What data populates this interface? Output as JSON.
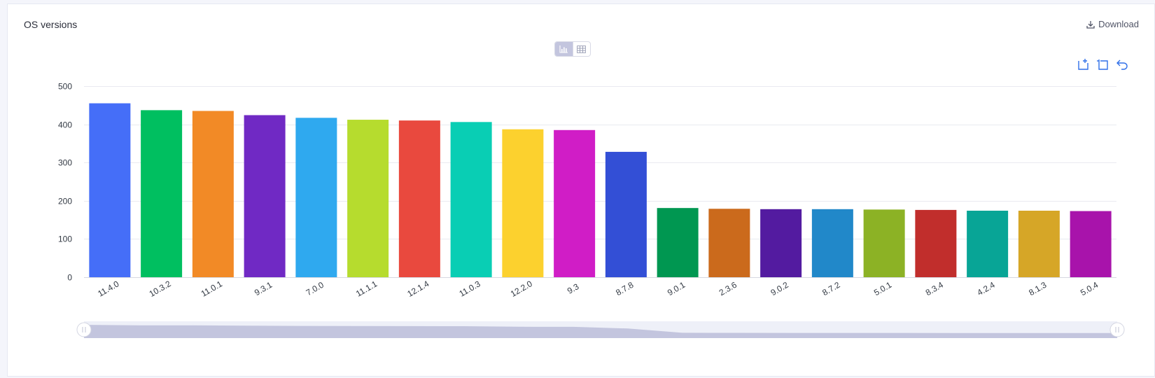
{
  "card": {
    "title": "OS versions",
    "download_label": "Download"
  },
  "toolbar": {
    "view_modes": [
      "chart",
      "table"
    ],
    "active_view": "chart",
    "tools": [
      "zoom-area-icon",
      "zoom-reset-icon",
      "restore-icon"
    ]
  },
  "colors": {
    "tool_blue": "#2f6fe8",
    "slider_fill": "#c3c5de",
    "slider_track": "#eef0f8"
  },
  "chart_data": {
    "type": "bar",
    "title": "",
    "xlabel": "",
    "ylabel": "",
    "ylim": [
      0,
      500
    ],
    "yticks": [
      0,
      100,
      200,
      300,
      400,
      500
    ],
    "grid": true,
    "legend": "none",
    "categories": [
      "11.4.0",
      "10.3.2",
      "11.0.1",
      "9.3.1",
      "7.0.0",
      "11.1.1",
      "12.1.4",
      "11.0.3",
      "12.2.0",
      "9.3",
      "8.7.8",
      "9.0.1",
      "2.3.6",
      "9.0.2",
      "8.7.2",
      "5.0.1",
      "8.3.4",
      "4.2.4",
      "8.1.3",
      "5.0.4"
    ],
    "values": [
      455,
      437,
      435,
      424,
      417,
      412,
      410,
      406,
      387,
      385,
      328,
      181,
      179,
      178,
      178,
      177,
      176,
      174,
      174,
      173
    ],
    "colors": [
      "#456ef8",
      "#00bf60",
      "#f28a26",
      "#7029c4",
      "#2fa9ef",
      "#b6dc2e",
      "#e9493e",
      "#09ceb4",
      "#fcd12e",
      "#d01dc6",
      "#334fd6",
      "#009751",
      "#cb6a1c",
      "#531ba0",
      "#2188c9",
      "#8cb225",
      "#c12e2c",
      "#08a596",
      "#d6a627",
      "#a813ab"
    ],
    "zoom_range": [
      0,
      100
    ]
  }
}
